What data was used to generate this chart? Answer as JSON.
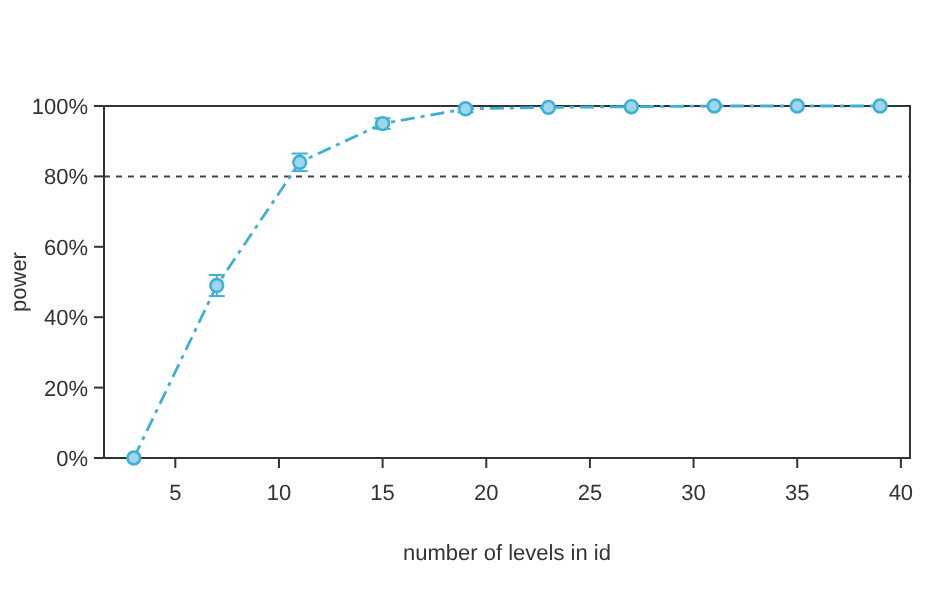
{
  "chart_data": {
    "type": "line",
    "xlabel": "number of levels in id",
    "ylabel": "power",
    "x": [
      3,
      7,
      11,
      15,
      19,
      23,
      27,
      31,
      35,
      39
    ],
    "series": [
      {
        "color": "#3eb0d5",
        "values": [
          0,
          49,
          84,
          95,
          99.2,
          99.6,
          99.8,
          100,
          100,
          100
        ],
        "errors": [
          null,
          [
            46,
            52
          ],
          [
            81.5,
            86.5
          ],
          [
            93.5,
            96.5
          ],
          [
            98.2,
            99.8
          ],
          null,
          null,
          null,
          null,
          null
        ]
      }
    ],
    "xlim": [
      1.56,
      40.44
    ],
    "ylim": [
      0,
      100
    ],
    "xticks": [
      5,
      10,
      15,
      20,
      25,
      30,
      35,
      40
    ],
    "yticks": [
      {
        "value": 0,
        "label": "0%"
      },
      {
        "value": 20,
        "label": "20%"
      },
      {
        "value": 40,
        "label": "40%"
      },
      {
        "value": 60,
        "label": "60%"
      },
      {
        "value": 80,
        "label": "80%"
      },
      {
        "value": 100,
        "label": "100%"
      }
    ],
    "ref_lines": [
      {
        "axis": "y",
        "value": 80,
        "color": "#444444",
        "line_style": "dashed"
      }
    ],
    "marker": "circle",
    "line_style": "dashed"
  }
}
